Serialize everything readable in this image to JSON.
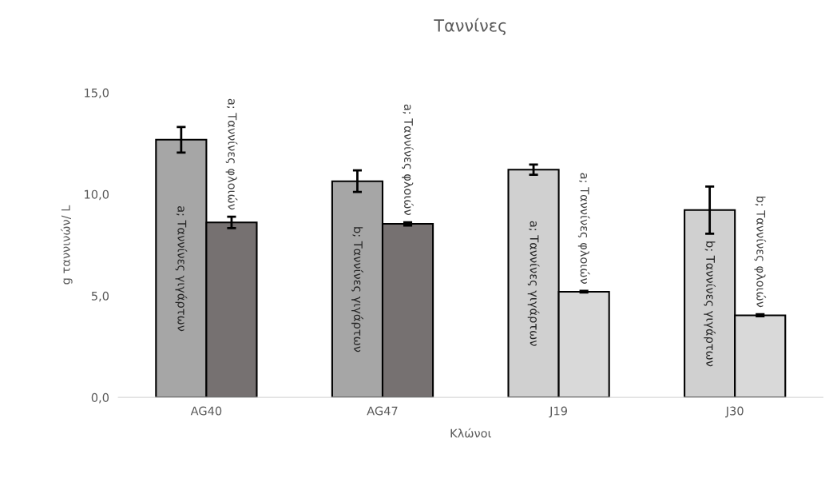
{
  "chart_data": {
    "type": "bar",
    "title": "Ταννίνες",
    "xlabel": "Κλώνοι",
    "ylabel": "g ταννινών/ L",
    "categories": [
      "AG40",
      "AG47",
      "J19",
      "J30"
    ],
    "series": [
      {
        "colors": [
          "#a6a6a6",
          "#a6a6a6",
          "#d0d0d0",
          "#d0d0d0"
        ],
        "values": [
          12.68,
          10.64,
          11.21,
          9.22
        ],
        "errors": [
          0.63,
          0.53,
          0.25,
          1.16
        ],
        "value_labels": [
          "a; Ταννίνες γιγάρτων",
          "b; Ταννίνες γιγάρτων",
          "a; Ταννίνες γιγάρτων",
          "b; Ταννίνες γιγάρτων"
        ]
      },
      {
        "colors": [
          "#767171",
          "#767171",
          "#d9d9d9",
          "#d9d9d9"
        ],
        "values": [
          8.61,
          8.54,
          5.2,
          4.04
        ],
        "errors": [
          0.28,
          0.08,
          0.04,
          0.05
        ],
        "value_labels": [
          "a; Ταννίνες φλοιών",
          "a; Ταννίνες φλοιών",
          "a; Ταννίνες φλοιών",
          "b; Ταννίνες φλοιών"
        ]
      }
    ],
    "ylim": [
      0,
      15
    ],
    "yticks": [
      {
        "value": 0,
        "label": "0,0"
      },
      {
        "value": 5,
        "label": "5,0"
      },
      {
        "value": 10,
        "label": "10,0"
      },
      {
        "value": 15,
        "label": "15,0"
      }
    ],
    "grid": false
  }
}
